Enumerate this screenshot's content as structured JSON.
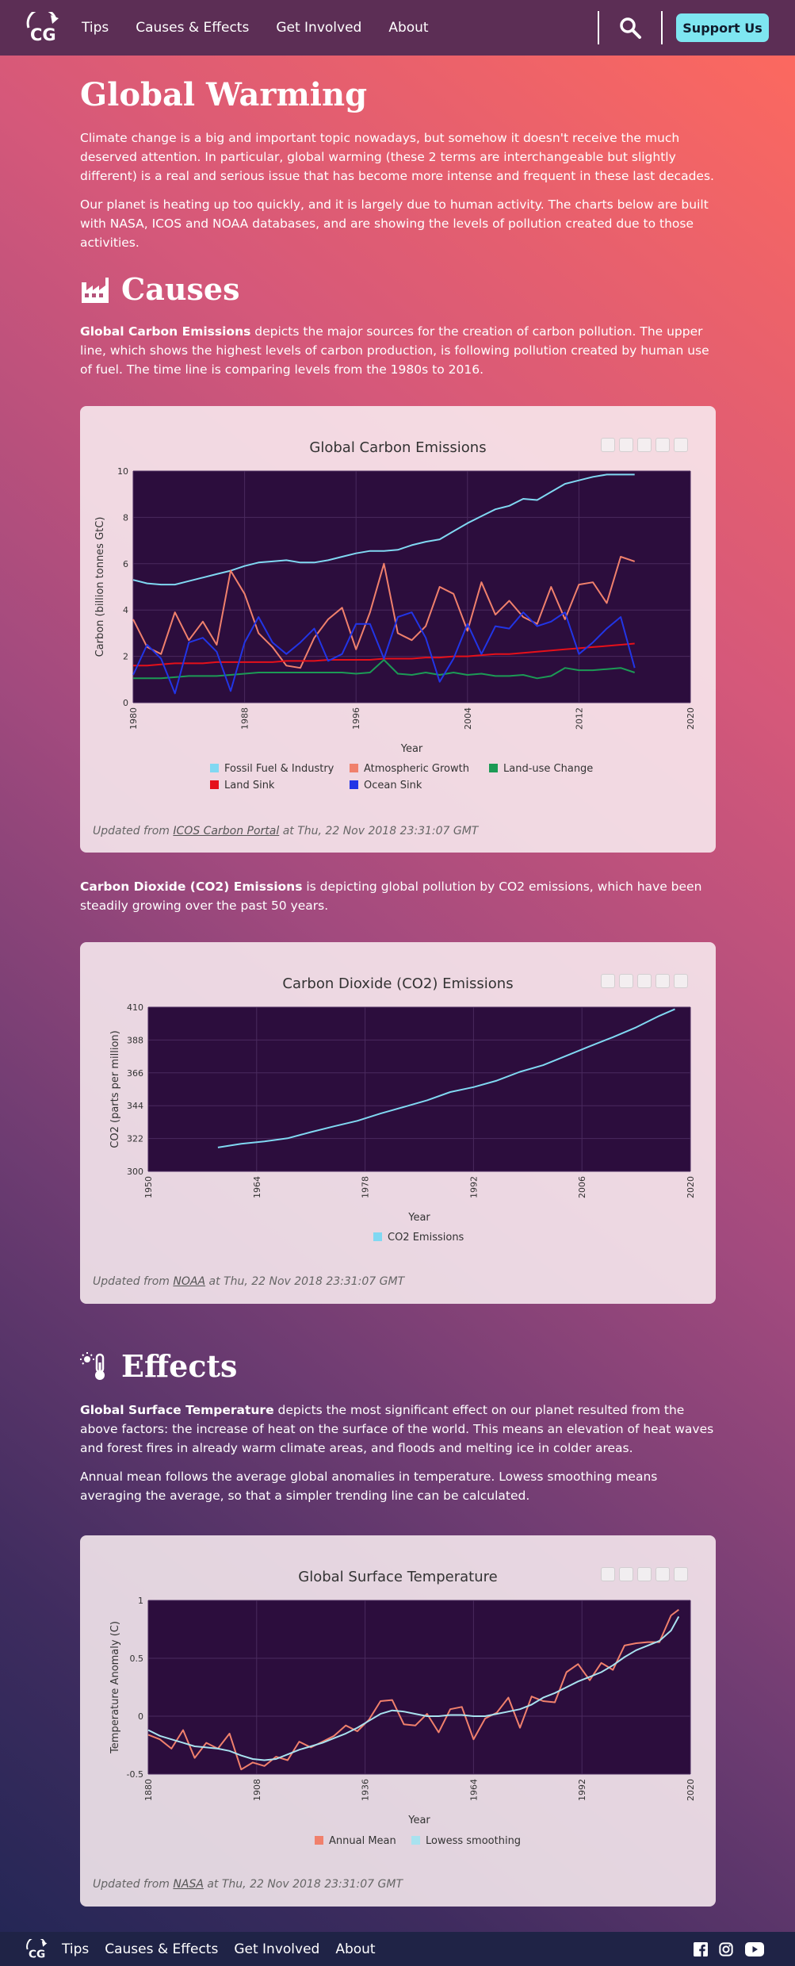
{
  "nav": {
    "links": [
      "Tips",
      "Causes & Effects",
      "Get Involved",
      "About"
    ],
    "logo_text": "CG",
    "support_label": "Support Us"
  },
  "intro": {
    "title": "Global Warming",
    "p1": "Climate change is a big and important topic nowadays, but somehow it doesn't receive the much deserved attention. In particular, global warming (these 2 terms are interchangeable but slightly different) is a real and serious issue that has become more intense and frequent in these last decades.",
    "p2": "Our planet is heating up too quickly, and it is largely due to human activity. The charts below are built with NASA, ICOS and NOAA databases, and are showing the levels of pollution created due to those activities."
  },
  "causes": {
    "title": "Causes",
    "p1_bold": "Global Carbon Emissions",
    "p1_rest": " depicts the major sources for the creation of carbon pollution. The upper line, which shows the highest levels of carbon production, is following pollution created by human use of fuel. The time line is comparing levels from the 1980s to 2016.",
    "p2_bold": "Carbon Dioxide (CO2) Emissions",
    "p2_rest": " is depicting global pollution by CO2 emissions, which have been steadily growing over the past 50 years."
  },
  "effects": {
    "title": "Effects",
    "p1_bold": "Global Surface Temperature",
    "p1_rest": " depicts the most significant effect on our planet resulted from the above factors: the increase of heat on the surface of the world. This means an elevation of heat waves and forest fires in already warm climate areas, and floods and melting ice in colder areas.",
    "p2": "Annual mean follows the average global anomalies in temperature. Lowess smoothing means averaging the average, so that a simpler trending line can be calculated."
  },
  "updates": {
    "prefix": "Updated from ",
    "suffix": " at Thu, 22 Nov 2018 23:31:07 GMT",
    "carbon_source": "ICOS Carbon Portal",
    "co2_source": "NOAA",
    "temp_source": "NASA"
  },
  "colors": {
    "plot_bg": "#2c0d3d",
    "fossil": "#80d8f2",
    "atmos": "#f0806c",
    "landuse": "#1c9a55",
    "landsink": "#e5101a",
    "oceansink": "#2235e6",
    "co2": "#80d8f2",
    "annual": "#f0806c",
    "lowess": "#a8e2ef"
  },
  "chart_data": [
    {
      "type": "line",
      "title": "Global Carbon Emissions",
      "xlabel": "Year",
      "ylabel": "Carbon (billion tonnes GtC)",
      "xlim": [
        1980,
        2020
      ],
      "ylim": [
        0,
        10
      ],
      "xticks": [
        "1980",
        "1988",
        "1996",
        "2004",
        "2012",
        "2020"
      ],
      "yticks": [
        "0",
        "2",
        "4",
        "6",
        "8",
        "10"
      ],
      "x": [
        1980,
        1981,
        1982,
        1983,
        1984,
        1985,
        1986,
        1987,
        1988,
        1989,
        1990,
        1991,
        1992,
        1993,
        1994,
        1995,
        1996,
        1997,
        1998,
        1999,
        2000,
        2001,
        2002,
        2003,
        2004,
        2005,
        2006,
        2007,
        2008,
        2009,
        2010,
        2011,
        2012,
        2013,
        2014,
        2015,
        2016
      ],
      "series": [
        {
          "name": "Fossil Fuel & Industry",
          "color": "fossil",
          "values": [
            5.3,
            5.15,
            5.1,
            5.1,
            5.25,
            5.4,
            5.55,
            5.7,
            5.9,
            6.05,
            6.1,
            6.15,
            6.05,
            6.05,
            6.15,
            6.3,
            6.45,
            6.55,
            6.55,
            6.6,
            6.8,
            6.95,
            7.05,
            7.4,
            7.75,
            8.05,
            8.35,
            8.5,
            8.8,
            8.75,
            9.1,
            9.45,
            9.6,
            9.75,
            9.85,
            9.85,
            9.85
          ]
        },
        {
          "name": "Atmospheric Growth",
          "color": "atmos",
          "values": [
            3.6,
            2.4,
            2.1,
            3.9,
            2.7,
            3.5,
            2.5,
            5.7,
            4.7,
            3.0,
            2.4,
            1.6,
            1.5,
            2.8,
            3.6,
            4.1,
            2.3,
            3.9,
            6.0,
            3.0,
            2.7,
            3.3,
            5.0,
            4.7,
            3.1,
            5.2,
            3.8,
            4.4,
            3.7,
            3.4,
            5.0,
            3.6,
            5.1,
            5.2,
            4.3,
            6.3,
            6.1
          ]
        },
        {
          "name": "Land-use Change",
          "color": "landuse",
          "values": [
            1.05,
            1.05,
            1.05,
            1.1,
            1.15,
            1.15,
            1.15,
            1.2,
            1.25,
            1.3,
            1.3,
            1.3,
            1.3,
            1.3,
            1.3,
            1.3,
            1.25,
            1.3,
            1.85,
            1.25,
            1.2,
            1.3,
            1.2,
            1.3,
            1.2,
            1.25,
            1.15,
            1.15,
            1.2,
            1.05,
            1.15,
            1.5,
            1.4,
            1.4,
            1.45,
            1.5,
            1.3
          ]
        },
        {
          "name": "Land Sink",
          "color": "landsink",
          "values": [
            1.6,
            1.6,
            1.65,
            1.7,
            1.7,
            1.7,
            1.75,
            1.75,
            1.75,
            1.75,
            1.75,
            1.8,
            1.8,
            1.8,
            1.85,
            1.85,
            1.85,
            1.85,
            1.9,
            1.9,
            1.9,
            1.95,
            1.95,
            2.0,
            2.0,
            2.05,
            2.1,
            2.1,
            2.15,
            2.2,
            2.25,
            2.3,
            2.35,
            2.4,
            2.45,
            2.5,
            2.55
          ]
        },
        {
          "name": "Ocean Sink",
          "color": "oceansink",
          "values": [
            1.2,
            2.5,
            1.9,
            0.4,
            2.6,
            2.8,
            2.2,
            0.5,
            2.6,
            3.7,
            2.6,
            2.1,
            2.6,
            3.2,
            1.8,
            2.1,
            3.4,
            3.4,
            1.9,
            3.7,
            3.9,
            2.8,
            0.9,
            1.9,
            3.4,
            2.1,
            3.3,
            3.2,
            3.9,
            3.3,
            3.5,
            3.9,
            2.1,
            2.6,
            3.2,
            3.7,
            1.5
          ]
        }
      ],
      "legend": "bottom"
    },
    {
      "type": "line",
      "title": "Carbon Dioxide (CO2) Emissions",
      "xlabel": "Year",
      "ylabel": "CO2 (parts per million)",
      "xlim": [
        1950,
        2020
      ],
      "ylim": [
        300,
        410
      ],
      "xticks": [
        "1950",
        "1964",
        "1978",
        "1992",
        "2006",
        "2020"
      ],
      "yticks": [
        "300",
        "322",
        "344",
        "366",
        "388",
        "410"
      ],
      "x": [
        1959,
        1962,
        1965,
        1968,
        1971,
        1974,
        1977,
        1980,
        1983,
        1986,
        1989,
        1992,
        1995,
        1998,
        2001,
        2004,
        2007,
        2010,
        2013,
        2016,
        2018
      ],
      "series": [
        {
          "name": "CO2 Emissions",
          "color": "co2",
          "values": [
            315.97,
            318.45,
            320.03,
            322.16,
            326.32,
            330.18,
            333.84,
            338.75,
            343.15,
            347.62,
            353.12,
            356.46,
            360.8,
            366.7,
            371.13,
            377.49,
            383.79,
            389.9,
            396.52,
            404.21,
            408.72
          ]
        }
      ],
      "legend": "bottom"
    },
    {
      "type": "line",
      "title": "Global Surface Temperature",
      "xlabel": "Year",
      "ylabel": "Temperature Anomaly (C)",
      "xlim": [
        1880,
        2020
      ],
      "ylim": [
        -0.5,
        1
      ],
      "xticks": [
        "1880",
        "1908",
        "1936",
        "1964",
        "1992",
        "2020"
      ],
      "yticks": [
        "-0.5",
        "0",
        "0.5",
        "1"
      ],
      "x": [
        1880,
        1883,
        1886,
        1889,
        1892,
        1895,
        1898,
        1901,
        1904,
        1907,
        1910,
        1913,
        1916,
        1919,
        1922,
        1925,
        1928,
        1931,
        1934,
        1937,
        1940,
        1943,
        1946,
        1949,
        1952,
        1955,
        1958,
        1961,
        1964,
        1967,
        1970,
        1973,
        1976,
        1979,
        1982,
        1985,
        1988,
        1991,
        1994,
        1997,
        2000,
        2003,
        2006,
        2009,
        2012,
        2015,
        2017
      ],
      "series": [
        {
          "name": "Annual Mean",
          "color": "annual",
          "values": [
            -0.16,
            -0.2,
            -0.28,
            -0.12,
            -0.36,
            -0.23,
            -0.28,
            -0.15,
            -0.46,
            -0.4,
            -0.43,
            -0.35,
            -0.38,
            -0.22,
            -0.27,
            -0.22,
            -0.17,
            -0.08,
            -0.13,
            -0.03,
            0.13,
            0.14,
            -0.07,
            -0.08,
            0.02,
            -0.14,
            0.06,
            0.08,
            -0.2,
            -0.02,
            0.03,
            0.16,
            -0.1,
            0.17,
            0.13,
            0.12,
            0.38,
            0.45,
            0.31,
            0.46,
            0.4,
            0.61,
            0.63,
            0.64,
            0.64,
            0.87,
            0.92
          ]
        },
        {
          "name": "Lowess smoothing",
          "color": "lowess",
          "values": [
            -0.12,
            -0.17,
            -0.2,
            -0.23,
            -0.26,
            -0.27,
            -0.28,
            -0.3,
            -0.34,
            -0.37,
            -0.38,
            -0.37,
            -0.33,
            -0.29,
            -0.26,
            -0.23,
            -0.19,
            -0.15,
            -0.1,
            -0.04,
            0.02,
            0.05,
            0.04,
            0.02,
            0.0,
            0.0,
            0.01,
            0.01,
            0.0,
            0.0,
            0.02,
            0.04,
            0.06,
            0.1,
            0.16,
            0.2,
            0.25,
            0.3,
            0.34,
            0.38,
            0.44,
            0.51,
            0.57,
            0.61,
            0.65,
            0.74,
            0.86
          ]
        }
      ],
      "legend": "bottom"
    }
  ]
}
